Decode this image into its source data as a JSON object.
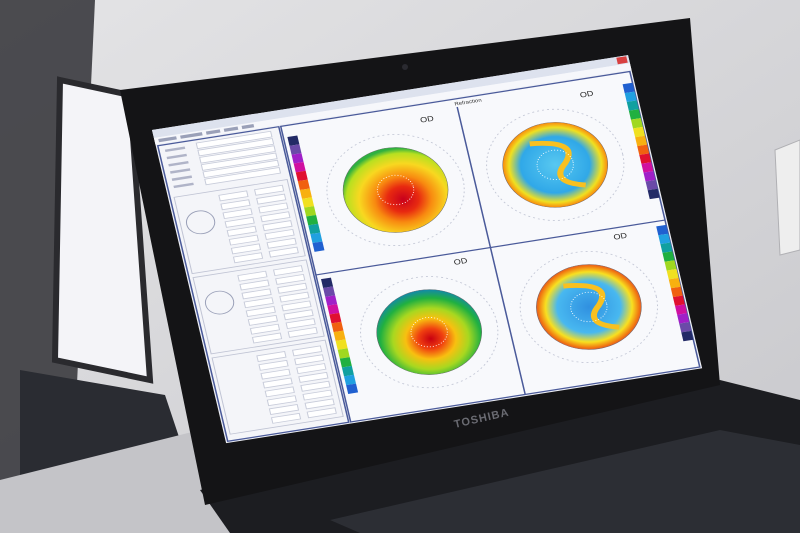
{
  "app": {
    "panel_title": "Refraction",
    "maps": [
      {
        "eye": "OD",
        "palette": "curvature"
      },
      {
        "eye": "OD",
        "palette": "elevation"
      },
      {
        "eye": "OD",
        "palette": "thickness"
      },
      {
        "eye": "OD",
        "palette": "elevation"
      }
    ]
  },
  "laptop": {
    "brand": "TOSHIBA"
  },
  "colors": {
    "wall": "#d9d9db",
    "bezel": "#141416",
    "screen_bg": "#eef0f6",
    "frame_blue": "#4a5a9a",
    "scale": [
      "#222a66",
      "#6a4aa8",
      "#a020c8",
      "#d010a0",
      "#e01030",
      "#f06010",
      "#f8b010",
      "#f0e020",
      "#a0d820",
      "#20b040",
      "#10a0a0",
      "#20a0e0",
      "#2060d0"
    ]
  }
}
